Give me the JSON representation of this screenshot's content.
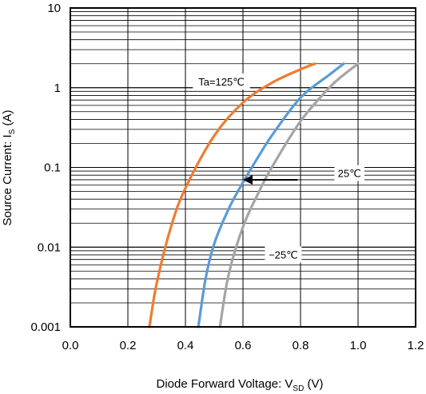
{
  "chart_data": {
    "type": "line",
    "xlabel": "Diode Forward Voltage: V",
    "xlabel_sub": "SD",
    "xlabel_unit": " (V)",
    "ylabel": "Source Current: I",
    "ylabel_sub": "S",
    "ylabel_unit": " (A)",
    "xlim": [
      0.0,
      1.2
    ],
    "ylim": [
      0.001,
      10
    ],
    "yscale": "log",
    "grid": true,
    "x_ticks": [
      "0.0",
      "0.2",
      "0.4",
      "0.6",
      "0.8",
      "1.0",
      "1.2"
    ],
    "y_ticks": [
      "0.001",
      "0.01",
      "0.1",
      "1",
      "10"
    ],
    "series": [
      {
        "name": "Ta=125℃",
        "color": "#ED7D31",
        "points": [
          [
            0.275,
            0.001
          ],
          [
            0.3,
            0.0035
          ],
          [
            0.35,
            0.018
          ],
          [
            0.4,
            0.055
          ],
          [
            0.5,
            0.25
          ],
          [
            0.6,
            0.65
          ],
          [
            0.7,
            1.15
          ],
          [
            0.8,
            1.7
          ],
          [
            0.85,
            2.0
          ]
        ]
      },
      {
        "name": "25℃",
        "color": "#5B9BD5",
        "points": [
          [
            0.445,
            0.001
          ],
          [
            0.47,
            0.004
          ],
          [
            0.5,
            0.011
          ],
          [
            0.55,
            0.03
          ],
          [
            0.6,
            0.065
          ],
          [
            0.65,
            0.13
          ],
          [
            0.7,
            0.25
          ],
          [
            0.8,
            0.75
          ],
          [
            0.9,
            1.45
          ],
          [
            0.95,
            2.0
          ]
        ]
      },
      {
        "name": "−25℃",
        "color": "#A5A5A5",
        "points": [
          [
            0.52,
            0.001
          ],
          [
            0.55,
            0.0045
          ],
          [
            0.6,
            0.018
          ],
          [
            0.65,
            0.045
          ],
          [
            0.7,
            0.1
          ],
          [
            0.8,
            0.38
          ],
          [
            0.9,
            1.0
          ],
          [
            0.95,
            1.45
          ],
          [
            1.0,
            2.0
          ]
        ]
      }
    ],
    "annotations": [
      {
        "text": "Ta=125℃",
        "x": 0.525,
        "y": 1.2
      },
      {
        "text": "25℃",
        "x": 0.97,
        "y": 0.085
      },
      {
        "text": "−25℃",
        "x": 0.74,
        "y": 0.0081
      },
      {
        "arrow_from": [
          0.79,
          0.07
        ],
        "arrow_to": [
          0.6,
          0.07
        ]
      }
    ]
  }
}
